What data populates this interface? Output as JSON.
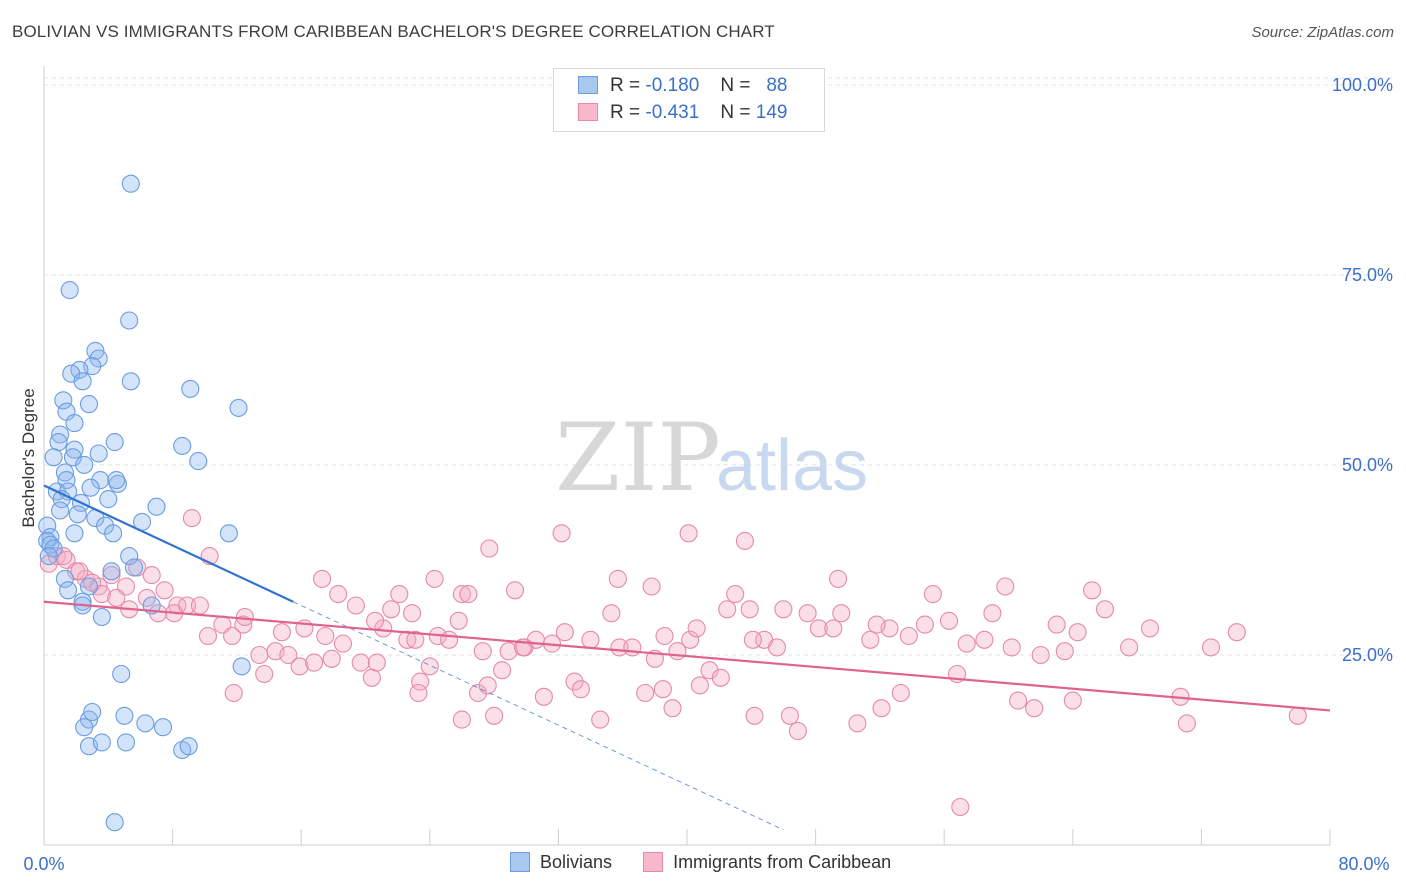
{
  "title": "BOLIVIAN VS IMMIGRANTS FROM CARIBBEAN BACHELOR'S DEGREE CORRELATION CHART",
  "source": "Source: ZipAtlas.com",
  "watermark": {
    "zip": "ZIP",
    "atlas": "atlas"
  },
  "legend": {
    "rows": [
      {
        "r_label": "R =",
        "r_value": "-0.180",
        "n_label": "N =",
        "n_value": "88",
        "color": "#a9c8f0",
        "stroke": "#6b9de0"
      },
      {
        "r_label": "R =",
        "r_value": "-0.431",
        "n_label": "N =",
        "n_value": "149",
        "color": "#f7b8cc",
        "stroke": "#e58aa8"
      }
    ]
  },
  "bottom_legend": [
    {
      "label": "Bolivians",
      "color": "#a9c8f0",
      "stroke": "#6b9de0"
    },
    {
      "label": "Immigrants from Caribbean",
      "color": "#f7b8cc",
      "stroke": "#e58aa8"
    }
  ],
  "chart_data": {
    "type": "scatter",
    "title": "BOLIVIAN VS IMMIGRANTS FROM CARIBBEAN BACHELOR'S DEGREE CORRELATION CHART",
    "xlabel": "",
    "ylabel": "Bachelor's Degree",
    "xlim": [
      0,
      80
    ],
    "ylim": [
      0,
      105
    ],
    "x_tick_labels": [
      "0.0%",
      "80.0%"
    ],
    "y_ticks": [
      25,
      50,
      75,
      100
    ],
    "y_tick_labels": [
      "25.0%",
      "50.0%",
      "75.0%",
      "100.0%"
    ],
    "grid": "horizontal dashed",
    "series": [
      {
        "name": "Bolivians",
        "color": "#6b9de0",
        "fill": "rgba(140,182,238,0.38)",
        "trend": {
          "x": [
            0,
            15.5
          ],
          "y": [
            47.3,
            32.0
          ],
          "dashed_ext_x": [
            15.5,
            46
          ],
          "dashed_ext_y": [
            32.0,
            2.0
          ],
          "color": "#2f72d0"
        },
        "points": [
          [
            5.4,
            87
          ],
          [
            1.6,
            73
          ],
          [
            5.3,
            69
          ],
          [
            3.2,
            65
          ],
          [
            3.4,
            64
          ],
          [
            3.0,
            63
          ],
          [
            2.2,
            62.5
          ],
          [
            1.7,
            62
          ],
          [
            2.4,
            61
          ],
          [
            5.4,
            61
          ],
          [
            1.2,
            58.5
          ],
          [
            2.8,
            58
          ],
          [
            1.4,
            57
          ],
          [
            9.1,
            60
          ],
          [
            12.1,
            57.5
          ],
          [
            1.9,
            55.5
          ],
          [
            1.0,
            54
          ],
          [
            0.9,
            53
          ],
          [
            4.4,
            53
          ],
          [
            1.9,
            52
          ],
          [
            8.6,
            52.5
          ],
          [
            3.4,
            51.5
          ],
          [
            0.6,
            51
          ],
          [
            1.8,
            51
          ],
          [
            2.5,
            50
          ],
          [
            9.6,
            50.5
          ],
          [
            1.3,
            49
          ],
          [
            1.4,
            48
          ],
          [
            3.5,
            48
          ],
          [
            0.8,
            46.5
          ],
          [
            1.5,
            46.5
          ],
          [
            4.6,
            47.5
          ],
          [
            2.9,
            47
          ],
          [
            4.5,
            48
          ],
          [
            1.1,
            45.5
          ],
          [
            2.3,
            45
          ],
          [
            4.0,
            45.5
          ],
          [
            1.0,
            44
          ],
          [
            2.1,
            43.5
          ],
          [
            7.0,
            44.5
          ],
          [
            3.2,
            43
          ],
          [
            6.1,
            42.5
          ],
          [
            3.8,
            42
          ],
          [
            0.2,
            42
          ],
          [
            1.9,
            41
          ],
          [
            11.5,
            41
          ],
          [
            4.3,
            41
          ],
          [
            0.4,
            40.5
          ],
          [
            0.2,
            40
          ],
          [
            0.4,
            39.5
          ],
          [
            0.6,
            39
          ],
          [
            5.3,
            38
          ],
          [
            0.3,
            38
          ],
          [
            5.6,
            36.5
          ],
          [
            4.2,
            36
          ],
          [
            1.3,
            35
          ],
          [
            2.8,
            34
          ],
          [
            1.5,
            33.5
          ],
          [
            2.4,
            32
          ],
          [
            6.7,
            31.5
          ],
          [
            3.6,
            30
          ],
          [
            2.4,
            31.5
          ],
          [
            12.3,
            23.5
          ],
          [
            4.8,
            22.5
          ],
          [
            2.8,
            16.5
          ],
          [
            5.0,
            17
          ],
          [
            3.0,
            17.5
          ],
          [
            2.5,
            15.5
          ],
          [
            6.3,
            16
          ],
          [
            7.4,
            15.5
          ],
          [
            2.8,
            13
          ],
          [
            3.6,
            13.5
          ],
          [
            5.1,
            13.5
          ],
          [
            8.6,
            12.5
          ],
          [
            9.0,
            13
          ],
          [
            4.4,
            3
          ]
        ]
      },
      {
        "name": "Immigrants from Caribbean",
        "color": "#e58aa8",
        "fill": "rgba(245,170,195,0.38)",
        "trend": {
          "x": [
            0,
            80
          ],
          "y": [
            32.0,
            17.7
          ],
          "color": "#e0628f"
        },
        "points": [
          [
            0.3,
            37
          ],
          [
            0.8,
            38
          ],
          [
            1.4,
            37.5
          ],
          [
            2.0,
            36
          ],
          [
            2.6,
            35
          ],
          [
            3.4,
            34
          ],
          [
            4.2,
            35.5
          ],
          [
            5.1,
            34
          ],
          [
            5.8,
            36.5
          ],
          [
            6.7,
            35.5
          ],
          [
            7.5,
            33.5
          ],
          [
            8.3,
            31.5
          ],
          [
            1.2,
            38
          ],
          [
            2.2,
            36
          ],
          [
            3.0,
            34.5
          ],
          [
            3.6,
            33
          ],
          [
            4.5,
            32.5
          ],
          [
            5.3,
            31
          ],
          [
            6.4,
            32.5
          ],
          [
            7.1,
            30.5
          ],
          [
            8.1,
            30.5
          ],
          [
            8.9,
            31.5
          ],
          [
            9.7,
            31.5
          ],
          [
            10.2,
            27.5
          ],
          [
            11.1,
            29
          ],
          [
            11.7,
            27.5
          ],
          [
            12.4,
            29
          ],
          [
            13.4,
            25
          ],
          [
            13.7,
            22.5
          ],
          [
            14.4,
            25.5
          ],
          [
            14.8,
            28
          ],
          [
            15.2,
            25
          ],
          [
            15.9,
            23.5
          ],
          [
            16.2,
            28.5
          ],
          [
            16.8,
            24
          ],
          [
            17.5,
            27.5
          ],
          [
            17.9,
            24.5
          ],
          [
            18.6,
            26.5
          ],
          [
            19.4,
            31.5
          ],
          [
            19.7,
            24
          ],
          [
            20.4,
            22
          ],
          [
            20.7,
            24
          ],
          [
            21.1,
            28.5
          ],
          [
            21.6,
            31
          ],
          [
            22.1,
            33
          ],
          [
            22.6,
            27
          ],
          [
            23.1,
            27
          ],
          [
            23.4,
            21.5
          ],
          [
            24.0,
            23.5
          ],
          [
            24.5,
            27.5
          ],
          [
            25.2,
            27
          ],
          [
            25.8,
            29.5
          ],
          [
            26.0,
            33
          ],
          [
            26.4,
            33
          ],
          [
            27.0,
            20
          ],
          [
            27.3,
            25.5
          ],
          [
            27.6,
            21
          ],
          [
            28.0,
            17
          ],
          [
            28.9,
            25.5
          ],
          [
            29.3,
            33.5
          ],
          [
            29.9,
            26
          ],
          [
            30.6,
            27
          ],
          [
            31.1,
            19.5
          ],
          [
            31.6,
            26.5
          ],
          [
            32.4,
            28
          ],
          [
            33.0,
            21.5
          ],
          [
            33.4,
            20.5
          ],
          [
            34.0,
            27
          ],
          [
            34.6,
            16.5
          ],
          [
            35.3,
            30.5
          ],
          [
            35.8,
            26
          ],
          [
            36.6,
            26
          ],
          [
            37.4,
            20
          ],
          [
            38.0,
            24.5
          ],
          [
            38.6,
            27.5
          ],
          [
            39.1,
            18
          ],
          [
            39.4,
            25.5
          ],
          [
            40.2,
            27
          ],
          [
            40.8,
            21
          ],
          [
            41.4,
            23
          ],
          [
            42.1,
            22
          ],
          [
            42.5,
            31
          ],
          [
            43.0,
            33
          ],
          [
            43.9,
            31
          ],
          [
            44.2,
            17
          ],
          [
            44.8,
            27
          ],
          [
            45.6,
            26
          ],
          [
            46.4,
            17
          ],
          [
            46.9,
            15
          ],
          [
            47.5,
            30.5
          ],
          [
            48.2,
            28.5
          ],
          [
            49.1,
            28.5
          ],
          [
            49.6,
            30.5
          ],
          [
            50.6,
            16
          ],
          [
            51.4,
            27
          ],
          [
            52.1,
            18
          ],
          [
            52.6,
            28.5
          ],
          [
            53.3,
            20
          ],
          [
            53.8,
            27.5
          ],
          [
            54.8,
            29
          ],
          [
            55.3,
            33
          ],
          [
            56.8,
            22.5
          ],
          [
            57.4,
            26.5
          ],
          [
            58.5,
            27
          ],
          [
            59.0,
            30.5
          ],
          [
            60.2,
            26
          ],
          [
            60.6,
            19
          ],
          [
            61.6,
            18
          ],
          [
            63.0,
            29
          ],
          [
            63.5,
            25.5
          ],
          [
            64.3,
            28
          ],
          [
            65.2,
            33.5
          ],
          [
            66.0,
            31
          ],
          [
            67.5,
            26
          ],
          [
            68.8,
            28.5
          ],
          [
            70.7,
            19.5
          ],
          [
            71.1,
            16
          ],
          [
            72.6,
            26
          ],
          [
            74.2,
            28
          ],
          [
            78.0,
            17
          ],
          [
            57.0,
            5
          ],
          [
            43.6,
            40
          ],
          [
            27.7,
            39
          ],
          [
            32.2,
            41
          ],
          [
            40.1,
            41
          ],
          [
            23.3,
            20
          ],
          [
            26.0,
            16.5
          ],
          [
            24.3,
            35
          ],
          [
            9.2,
            43
          ],
          [
            11.8,
            20
          ],
          [
            12.5,
            30
          ],
          [
            10.3,
            38
          ],
          [
            17.3,
            35
          ],
          [
            18.3,
            33
          ],
          [
            20.6,
            29.5
          ],
          [
            22.9,
            30.5
          ],
          [
            28.5,
            23
          ],
          [
            29.8,
            26
          ],
          [
            35.7,
            35
          ],
          [
            37.8,
            34
          ],
          [
            38.5,
            20.5
          ],
          [
            40.6,
            28.5
          ],
          [
            44.1,
            27
          ],
          [
            46.0,
            31
          ],
          [
            49.4,
            35
          ],
          [
            51.8,
            29
          ],
          [
            56.3,
            29.5
          ],
          [
            59.8,
            34
          ],
          [
            62.0,
            25
          ],
          [
            64.0,
            19
          ]
        ]
      }
    ]
  }
}
